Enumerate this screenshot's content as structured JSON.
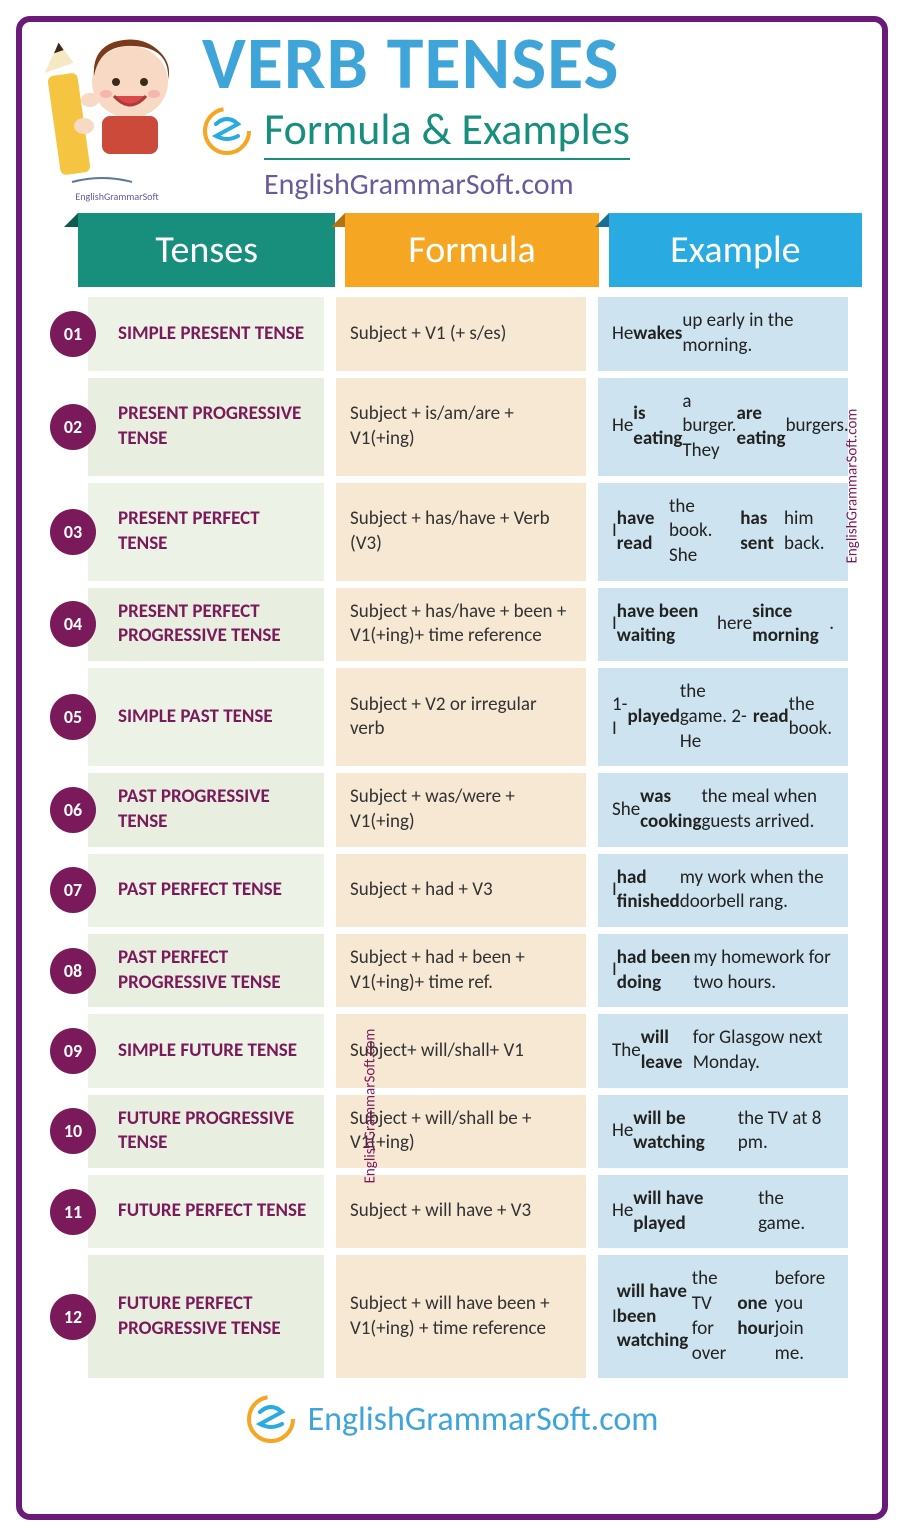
{
  "colors": {
    "border": "#6a1b7a",
    "title": "#3fa5d8",
    "subtitle": "#188f7d",
    "website": "#6a5a9c",
    "badge": "#7a1a5a",
    "tense_text": "#7a1a5a",
    "formula_bg": "#f7e8d4",
    "formula_text": "#333333",
    "example_bg": "#cde4f0",
    "example_text": "#222222",
    "tense_bg_even": "#e8efe0",
    "tense_bg_odd": "#edf2e7",
    "header_tenses": "#188f7d",
    "header_formula": "#f5a623",
    "header_example": "#29abe2",
    "footer_text": "#3fa5d8",
    "watermark": "#7a1a5a"
  },
  "header": {
    "title": "VERB TENSES",
    "subtitle": "Formula & Examples",
    "website": "EnglishGrammarSoft.com",
    "logo_label": "EnglishGrammarSoft"
  },
  "columns": {
    "tenses": "Tenses",
    "formula": "Formula",
    "example": "Example"
  },
  "rows": [
    {
      "num": "01",
      "tense": "SIMPLE PRESENT TENSE",
      "formula": "Subject + V1 (+ s/es)",
      "example": "He <b>wakes</b> up early in the morning."
    },
    {
      "num": "02",
      "tense": "PRESENT PROGRESSIVE TENSE",
      "formula": "Subject + is/am/are + V1(+ing)",
      "example": "He <b>is eating</b> a burger. They <b>are eating</b> burgers."
    },
    {
      "num": "03",
      "tense": "PRESENT PERFECT TENSE",
      "formula": "Subject + has/have + Verb (V3)",
      "example": "I <b>have read</b> the book. She <b>has sent</b> him back."
    },
    {
      "num": "04",
      "tense": "PRESENT PERFECT PROGRESSIVE TENSE",
      "formula": "Subject + has/have + been + V1(+ing)+ time reference",
      "example": "I <b>have been waiting</b> here <b>since morning</b>."
    },
    {
      "num": "05",
      "tense": "SIMPLE PAST TENSE",
      "formula": "Subject + V2 or irregular verb",
      "example": "1-I <b>played</b> the game. 2-He <b>read</b> the book."
    },
    {
      "num": "06",
      "tense": "PAST PROGRESSIVE TENSE",
      "formula": "Subject + was/were + V1(+ing)",
      "example": "She <b>was cooking</b> the meal when guests arrived."
    },
    {
      "num": "07",
      "tense": "PAST PERFECT TENSE",
      "formula": "Subject + had + V3",
      "example": "I <b>had finished</b> my work when the doorbell rang."
    },
    {
      "num": "08",
      "tense": "PAST PERFECT PROGRESSIVE TENSE",
      "formula": "Subject + had + been + V1(+ing)+ time ref.",
      "example": "I <b>had been doing</b> my homework for two hours."
    },
    {
      "num": "09",
      "tense": "SIMPLE FUTURE TENSE",
      "formula": "Subject+ will/shall+ V1",
      "example": "The <b>will leave</b> for Glasgow next Monday."
    },
    {
      "num": "10",
      "tense": "FUTURE PROGRESSIVE TENSE",
      "formula": "Subject + will/shall be + V1(+ing)",
      "example": "He <b>will be watching</b> the TV at 8 pm."
    },
    {
      "num": "11",
      "tense": "FUTURE PERFECT TENSE",
      "formula": "Subject + will have + V3",
      "example": "He <b>will have played</b> the game."
    },
    {
      "num": "12",
      "tense": "FUTURE PERFECT PROGRESSIVE TENSE",
      "formula": "Subject + will have been + V1(+ing) + time reference",
      "example": "I <b>will have been watching</b> the TV for over <b>one hour</b> before you join me."
    }
  ],
  "watermark": "EnglishGrammarSoft.com",
  "footer": "EnglishGrammarSoft.com"
}
